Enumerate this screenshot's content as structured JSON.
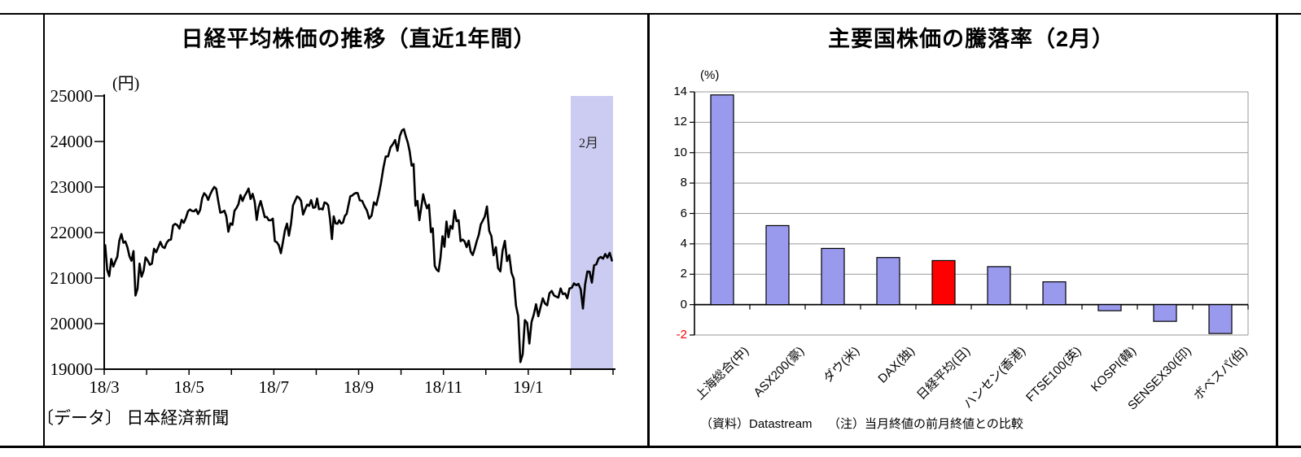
{
  "chart_data": [
    {
      "type": "line",
      "title": "日経平均株価の推移（直近1年間）",
      "ylabel": "(円)",
      "ylim": [
        19000,
        25000
      ],
      "y_ticks": [
        25000,
        24000,
        23000,
        22000,
        21000,
        20000,
        19000
      ],
      "x_tick_labels": [
        "18/3",
        "18/5",
        "18/7",
        "18/9",
        "18/11",
        "19/1"
      ],
      "months": [
        "18/3",
        "18/4",
        "18/5",
        "18/6",
        "18/7",
        "18/8",
        "18/9",
        "18/10",
        "18/11",
        "18/12",
        "19/1",
        "19/2"
      ],
      "highlight_band": {
        "label": "2月",
        "month_index": 11,
        "color": "#ccccf2"
      },
      "line_color": "#000000",
      "source": "〔データ〕 日本経済新聞",
      "series": [
        {
          "name": "日経平均株価",
          "monthly_values": [
            [
              21724,
              21182,
              21042,
              21418,
              21253,
              21368,
              21470,
              21824,
              21968,
              21777,
              21804,
              21677,
              21481,
              21381,
              21592,
              20618,
              20766,
              21317,
              21032,
              21160,
              21454
            ],
            [
              21389,
              21292,
              21320,
              21645,
              21567,
              21678,
              21794,
              21687,
              21660,
              21779,
              21836,
              21847,
              22158,
              22191,
              22162,
              22088,
              22278,
              22215,
              22319,
              22468
            ],
            [
              22508,
              22473,
              22467,
              22509,
              22408,
              22497,
              22758,
              22865,
              22818,
              22717,
              22838,
              22930,
              23002,
              22960,
              22690,
              22437,
              22451,
              22481,
              22358,
              22018,
              22201
            ],
            [
              22171,
              22476,
              22540,
              22625,
              22824,
              22695,
              22804,
              22878,
              22966,
              22738,
              22851,
              22680,
              22278,
              22555,
              22693,
              22517,
              22338,
              22342,
              22272,
              22270,
              22305
            ],
            [
              21812,
              21786,
              21717,
              21547,
              21788,
              22052,
              22196,
              21932,
              22188,
              22597,
              22697,
              22794,
              22765,
              22698,
              22396,
              22510,
              22614,
              22587,
              22713,
              22544,
              22554
            ],
            [
              22746,
              22512,
              22525,
              22507,
              22662,
              22644,
              22598,
              22298,
              21857,
              22356,
              22204,
              22192,
              22270,
              22199,
              22219,
              22362,
              22410,
              22601,
              22799,
              22813,
              22848,
              22869,
              22865
            ],
            [
              22707,
              22696,
              22580,
              22487,
              22307,
              22373,
              22664,
              22604,
              22821,
              23094,
              23420,
              23672,
              23674,
              23869,
              23940,
              24033,
              23796,
              24120
            ],
            [
              24245,
              24270,
              24110,
              23975,
              23783,
              23469,
              23506,
              22590,
              22694,
              22271,
              22549,
              22841,
              22658,
              22532,
              22614,
              22010,
              22091,
              21268,
              21184,
              21149,
              21457,
              21920
            ],
            [
              21687,
              22243,
              21898,
              22147,
              22085,
              22486,
              22250,
              22269,
              21810,
              21846,
              21803,
              21680,
              21821,
              21583,
              21507,
              21646,
              21812,
              21952,
              22177,
              22263,
              22351
            ],
            [
              22574,
              22036,
              21919,
              21501,
              21678,
              21219,
              21148,
              21602,
              21816,
              21374,
              21506,
              21115,
              20987,
              20392,
              20166,
              19155,
              19327,
              20077,
              20014
            ],
            [
              19562,
              20038,
              20204,
              20427,
              20163,
              20359,
              20555,
              20442,
              20402,
              20666,
              20719,
              20622,
              20593,
              20574,
              20773,
              20649,
              20664,
              20556,
              20773
            ],
            [
              20788,
              20884,
              20844,
              20874,
              20751,
              20333,
              20864,
              21144,
              21139,
              20900,
              21281,
              21302,
              21431,
              21464,
              21426,
              21528,
              21449,
              21556,
              21385
            ]
          ]
        }
      ]
    },
    {
      "type": "bar",
      "title": "主要国株価の騰落率（2月）",
      "ylabel": "(%)",
      "ylim": [
        -2,
        14
      ],
      "y_ticks": [
        14,
        12,
        10,
        8,
        6,
        4,
        2,
        0,
        -2
      ],
      "categories": [
        "上海総合(中)",
        "ASX200(豪)",
        "ダウ(米)",
        "DAX(独)",
        "日経平均(日)",
        "ハンセン(香港)",
        "FTSE100(英)",
        "KOSPI(韓)",
        "SENSEX30(印)",
        "ボベスパ(伯)"
      ],
      "values": [
        13.8,
        5.2,
        3.7,
        3.1,
        2.9,
        2.5,
        1.5,
        -0.4,
        -1.1,
        -1.9
      ],
      "highlight_index": 4,
      "bar_colors": {
        "default": "#9999ee",
        "highlight": "#ff0000"
      },
      "grid_color": "#999999",
      "negative_tick_color": "#ff0000",
      "source": "（資料）Datastream",
      "note": "（注）当月終値の前月終値との比較"
    }
  ]
}
